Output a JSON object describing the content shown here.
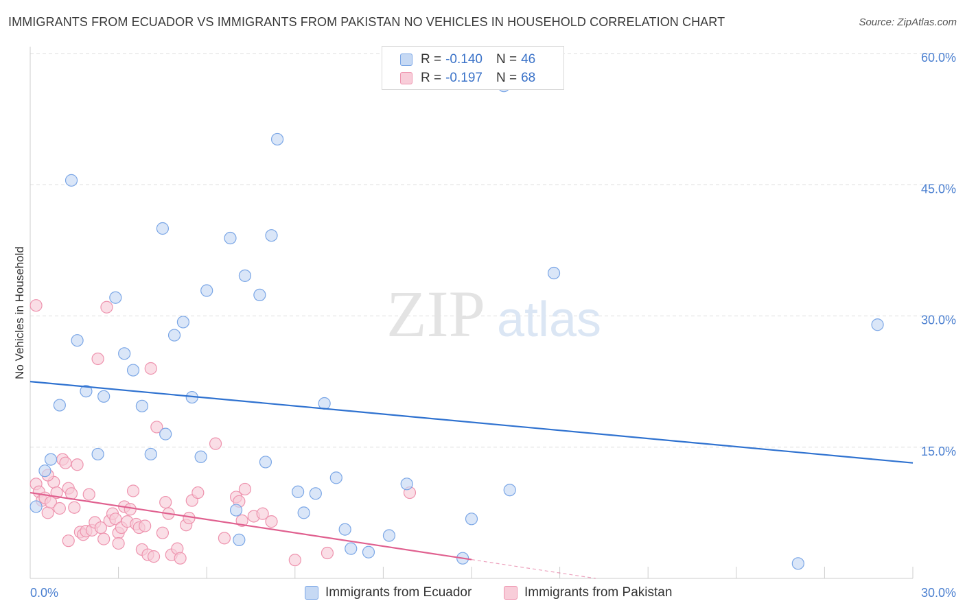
{
  "title": "IMMIGRANTS FROM ECUADOR VS IMMIGRANTS FROM PAKISTAN NO VEHICLES IN HOUSEHOLD CORRELATION CHART",
  "source": "Source: ZipAtlas.com",
  "watermark": {
    "zip": "ZIP",
    "atlas": "atlas"
  },
  "legend": {
    "ecuador": {
      "r_label": "R =",
      "r_value": "-0.140",
      "n_label": "N =",
      "n_value": "46"
    },
    "pakistan": {
      "r_label": "R =",
      "r_value": "-0.197",
      "n_label": "N =",
      "n_value": "68"
    }
  },
  "colors": {
    "ecuador_fill": "#c6d9f4",
    "ecuador_stroke": "#7aa6e6",
    "ecuador_line": "#2f72d0",
    "pakistan_fill": "#f8cdd9",
    "pakistan_stroke": "#ee93ae",
    "pakistan_line": "#e0608f",
    "grid": "#dddddd",
    "axis_label": "#4a7fd0"
  },
  "chart_data": {
    "type": "scatter",
    "title": "IMMIGRANTS FROM ECUADOR VS IMMIGRANTS FROM PAKISTAN NO VEHICLES IN HOUSEHOLD CORRELATION CHART",
    "xlabel": "",
    "ylabel": "No Vehicles in Household",
    "xlim": [
      0,
      30
    ],
    "ylim": [
      0,
      60
    ],
    "x_tick_labels": [
      "0.0%",
      "30.0%"
    ],
    "y_ticks": [
      15,
      30,
      45,
      60
    ],
    "y_tick_labels": [
      "15.0%",
      "30.0%",
      "45.0%",
      "60.0%"
    ],
    "grid": "horizontal dashed",
    "legend_placement": "bottom",
    "series": [
      {
        "name": "Immigrants from Ecuador",
        "R": -0.14,
        "N": 46,
        "trend": {
          "x": [
            0,
            30
          ],
          "y": [
            22.5,
            13.2
          ],
          "dashed_from": null
        },
        "points": [
          [
            0.2,
            8.2
          ],
          [
            0.5,
            12.3
          ],
          [
            0.7,
            13.6
          ],
          [
            1.0,
            19.8
          ],
          [
            1.4,
            45.5
          ],
          [
            1.6,
            27.2
          ],
          [
            1.9,
            21.4
          ],
          [
            2.3,
            14.2
          ],
          [
            2.5,
            20.8
          ],
          [
            2.9,
            32.1
          ],
          [
            3.2,
            25.7
          ],
          [
            3.5,
            23.8
          ],
          [
            3.8,
            19.7
          ],
          [
            4.1,
            14.2
          ],
          [
            4.5,
            40.0
          ],
          [
            4.6,
            16.5
          ],
          [
            4.9,
            27.8
          ],
          [
            5.2,
            29.3
          ],
          [
            5.5,
            20.7
          ],
          [
            5.8,
            13.9
          ],
          [
            6.0,
            32.9
          ],
          [
            6.8,
            38.9
          ],
          [
            7.1,
            4.4
          ],
          [
            7.0,
            7.8
          ],
          [
            7.3,
            34.6
          ],
          [
            7.8,
            32.4
          ],
          [
            8.0,
            13.3
          ],
          [
            8.2,
            39.2
          ],
          [
            8.4,
            50.2
          ],
          [
            9.1,
            9.9
          ],
          [
            9.3,
            7.5
          ],
          [
            9.7,
            9.7
          ],
          [
            10.0,
            20.0
          ],
          [
            10.4,
            11.5
          ],
          [
            10.7,
            5.6
          ],
          [
            10.9,
            3.4
          ],
          [
            11.5,
            3.0
          ],
          [
            12.2,
            4.9
          ],
          [
            12.8,
            10.8
          ],
          [
            14.7,
            2.3
          ],
          [
            15.0,
            6.8
          ],
          [
            16.1,
            56.3
          ],
          [
            16.3,
            10.1
          ],
          [
            17.8,
            34.9
          ],
          [
            26.1,
            1.7
          ],
          [
            28.8,
            29.0
          ]
        ]
      },
      {
        "name": "Immigrants from Pakistan",
        "R": -0.197,
        "N": 68,
        "trend": {
          "x": [
            0,
            30
          ],
          "y": [
            9.8,
            -5.5
          ],
          "dashed_from": 15.0
        },
        "points": [
          [
            0.2,
            10.8
          ],
          [
            0.3,
            9.9
          ],
          [
            0.4,
            8.9
          ],
          [
            0.5,
            9.2
          ],
          [
            0.6,
            7.5
          ],
          [
            0.7,
            8.7
          ],
          [
            0.8,
            11.0
          ],
          [
            0.9,
            9.8
          ],
          [
            1.0,
            8.0
          ],
          [
            1.1,
            13.6
          ],
          [
            1.2,
            13.2
          ],
          [
            1.3,
            10.3
          ],
          [
            1.4,
            9.7
          ],
          [
            1.5,
            8.1
          ],
          [
            1.6,
            13.0
          ],
          [
            1.7,
            5.3
          ],
          [
            1.8,
            5.0
          ],
          [
            1.9,
            5.4
          ],
          [
            2.0,
            9.6
          ],
          [
            2.1,
            5.5
          ],
          [
            2.2,
            6.4
          ],
          [
            2.3,
            25.1
          ],
          [
            2.4,
            5.8
          ],
          [
            2.5,
            4.5
          ],
          [
            2.6,
            31.0
          ],
          [
            2.7,
            6.6
          ],
          [
            2.8,
            7.4
          ],
          [
            2.9,
            6.8
          ],
          [
            3.0,
            5.2
          ],
          [
            3.1,
            5.8
          ],
          [
            3.2,
            8.2
          ],
          [
            3.3,
            6.5
          ],
          [
            3.4,
            7.9
          ],
          [
            3.5,
            10.0
          ],
          [
            3.6,
            6.2
          ],
          [
            3.7,
            5.8
          ],
          [
            3.8,
            3.3
          ],
          [
            3.9,
            6.0
          ],
          [
            4.0,
            2.7
          ],
          [
            4.1,
            24.0
          ],
          [
            4.2,
            2.5
          ],
          [
            4.3,
            17.3
          ],
          [
            4.5,
            5.2
          ],
          [
            4.6,
            8.7
          ],
          [
            4.7,
            7.4
          ],
          [
            4.8,
            2.7
          ],
          [
            5.0,
            3.4
          ],
          [
            5.1,
            2.3
          ],
          [
            5.3,
            6.1
          ],
          [
            5.5,
            8.9
          ],
          [
            5.7,
            9.8
          ],
          [
            6.3,
            15.4
          ],
          [
            6.6,
            4.6
          ],
          [
            7.0,
            9.3
          ],
          [
            7.1,
            8.8
          ],
          [
            7.3,
            10.2
          ],
          [
            7.6,
            7.1
          ],
          [
            7.9,
            7.4
          ],
          [
            8.2,
            6.5
          ],
          [
            9.0,
            2.1
          ],
          [
            10.1,
            2.9
          ],
          [
            12.9,
            9.8
          ],
          [
            0.2,
            31.2
          ],
          [
            0.6,
            11.8
          ],
          [
            1.3,
            4.3
          ],
          [
            3.0,
            4.0
          ],
          [
            5.4,
            6.9
          ],
          [
            7.2,
            6.6
          ]
        ]
      }
    ]
  },
  "bottom_legend": [
    {
      "label": "Immigrants from Ecuador"
    },
    {
      "label": "Immigrants from Pakistan"
    }
  ]
}
